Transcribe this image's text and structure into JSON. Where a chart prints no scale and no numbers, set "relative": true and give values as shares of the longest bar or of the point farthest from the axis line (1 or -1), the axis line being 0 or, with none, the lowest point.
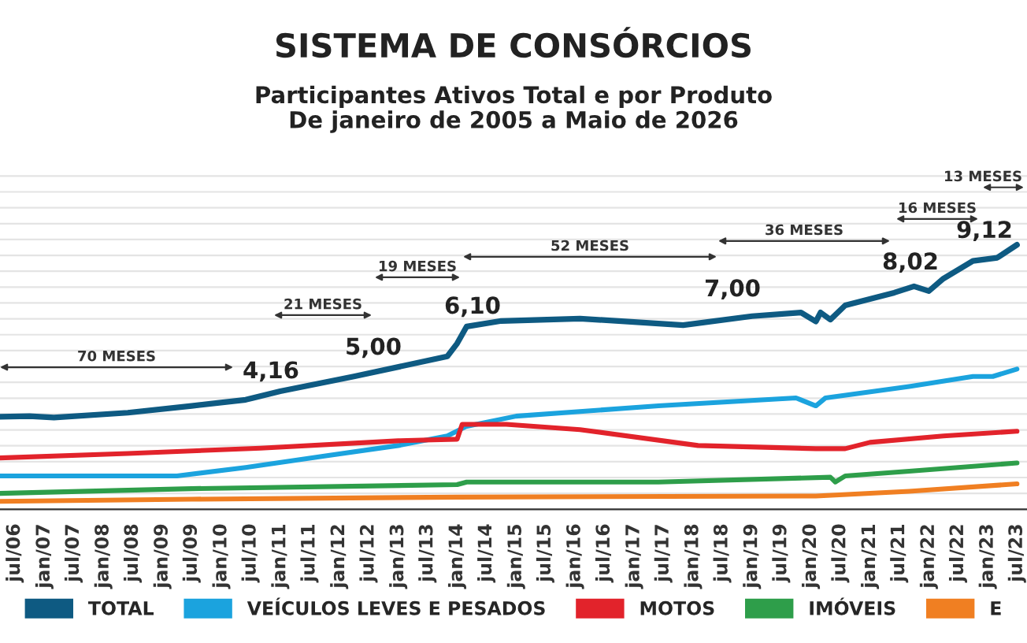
{
  "chart_data": {
    "type": "line",
    "title": "SISTEMA DE CONSÓRCIOS",
    "subtitle": "Participantes Ativos Total e por Produto\nDe janeiro de 2005 a Maio de 2026",
    "relative": true,
    "xlim": [
      "2006-04",
      "2023-09"
    ],
    "xticks": [
      {
        "value": "2006-07",
        "label": "jul/06"
      },
      {
        "value": "2007-01",
        "label": "jan/07"
      },
      {
        "value": "2007-07",
        "label": "jul/07"
      },
      {
        "value": "2008-01",
        "label": "jan/08"
      },
      {
        "value": "2008-07",
        "label": "jul/08"
      },
      {
        "value": "2009-01",
        "label": "jan/09"
      },
      {
        "value": "2009-07",
        "label": "jul/09"
      },
      {
        "value": "2010-01",
        "label": "jan/10"
      },
      {
        "value": "2010-07",
        "label": "jul/10"
      },
      {
        "value": "2011-01",
        "label": "jan/11"
      },
      {
        "value": "2011-07",
        "label": "jul/11"
      },
      {
        "value": "2012-01",
        "label": "jan/12"
      },
      {
        "value": "2012-07",
        "label": "jul/12"
      },
      {
        "value": "2013-01",
        "label": "jan/13"
      },
      {
        "value": "2013-07",
        "label": "jul/13"
      },
      {
        "value": "2014-01",
        "label": "jan/14"
      },
      {
        "value": "2014-07",
        "label": "jul/14"
      },
      {
        "value": "2015-01",
        "label": "jan/15"
      },
      {
        "value": "2015-07",
        "label": "jul/15"
      },
      {
        "value": "2016-01",
        "label": "jan/16"
      },
      {
        "value": "2016-07",
        "label": "jul/16"
      },
      {
        "value": "2017-01",
        "label": "jan/17"
      },
      {
        "value": "2017-07",
        "label": "jul/17"
      },
      {
        "value": "2018-01",
        "label": "jan/18"
      },
      {
        "value": "2018-07",
        "label": "jul/18"
      },
      {
        "value": "2019-01",
        "label": "jan/19"
      },
      {
        "value": "2019-07",
        "label": "jul/19"
      },
      {
        "value": "2020-01",
        "label": "jan/20"
      },
      {
        "value": "2020-07",
        "label": "jul/20"
      },
      {
        "value": "2021-01",
        "label": "jan/21"
      },
      {
        "value": "2021-07",
        "label": "jul/21"
      },
      {
        "value": "2022-01",
        "label": "jan/22"
      },
      {
        "value": "2022-07",
        "label": "jul/22"
      },
      {
        "value": "2023-01",
        "label": "jan/23"
      },
      {
        "value": "2023-07",
        "label": "jul/23"
      }
    ],
    "grid": "y",
    "legend": "bottom",
    "marker": "none",
    "line_style": "solid",
    "series": [
      {
        "name": "TOTAL",
        "color": "#0e5a82",
        "x": [
          "2006-04",
          "2006-10",
          "2007-03",
          "2008-06",
          "2009-07",
          "2010-06",
          "2011-01",
          "2012-04",
          "2013-11",
          "2014-01",
          "2014-03",
          "2014-10",
          "2016-02",
          "2017-11",
          "2019-01",
          "2019-11",
          "2020-02",
          "2020-03",
          "2020-05",
          "2020-08",
          "2021-06",
          "2021-10",
          "2022-01",
          "2022-04",
          "2022-10",
          "2023-03",
          "2023-07"
        ],
        "values": [
          0.35,
          0.352,
          0.347,
          0.365,
          0.391,
          0.414,
          0.446,
          0.502,
          0.578,
          0.627,
          0.691,
          0.712,
          0.721,
          0.696,
          0.73,
          0.744,
          0.71,
          0.744,
          0.717,
          0.771,
          0.819,
          0.843,
          0.825,
          0.872,
          0.939,
          0.951,
          1.0
        ]
      },
      {
        "name": "VEÍCULOS LEVES E PESADOS",
        "color": "#1ba3de",
        "x": [
          "2006-04",
          "2009-04",
          "2010-06",
          "2011-10",
          "2013-01",
          "2013-11",
          "2014-03",
          "2015-01",
          "2017-06",
          "2019-10",
          "2020-02",
          "2020-04",
          "2021-09",
          "2022-10",
          "2023-02",
          "2023-07"
        ],
        "values": [
          0.126,
          0.126,
          0.158,
          0.201,
          0.241,
          0.277,
          0.314,
          0.352,
          0.391,
          0.421,
          0.391,
          0.421,
          0.464,
          0.502,
          0.502,
          0.53
        ]
      },
      {
        "name": "MOTOS",
        "color": "#e2232b",
        "x": [
          "2006-04",
          "2008-06",
          "2010-09",
          "2013-01",
          "2014-01",
          "2014-02",
          "2014-11",
          "2016-02",
          "2018-02",
          "2020-02",
          "2020-08",
          "2021-01",
          "2022-04",
          "2023-07"
        ],
        "values": [
          0.194,
          0.211,
          0.231,
          0.259,
          0.265,
          0.321,
          0.321,
          0.301,
          0.241,
          0.229,
          0.229,
          0.253,
          0.277,
          0.295
        ]
      },
      {
        "name": "IMÓVEIS",
        "color": "#2e9e4a",
        "x": [
          "2006-04",
          "2009-07",
          "2014-01",
          "2014-03",
          "2017-06",
          "2020-05",
          "2020-06",
          "2020-08",
          "2021-09",
          "2023-07"
        ],
        "values": [
          0.06,
          0.078,
          0.093,
          0.103,
          0.103,
          0.121,
          0.103,
          0.126,
          0.144,
          0.175
        ]
      },
      {
        "name": "E",
        "color": "#f07f22",
        "x": [
          "2006-04",
          "2009-07",
          "2014-01",
          "2020-02",
          "2021-09",
          "2023-07"
        ],
        "values": [
          0.03,
          0.038,
          0.046,
          0.05,
          0.068,
          0.096
        ]
      }
    ],
    "annotations": [
      "70 MESES",
      "4,16",
      "21 MESES",
      "5,00",
      "19 MESES",
      "6,10",
      "52 MESES",
      "7,00",
      "36 MESES",
      "8,02",
      "16 MESES",
      "9,12",
      "13 MESES"
    ]
  }
}
